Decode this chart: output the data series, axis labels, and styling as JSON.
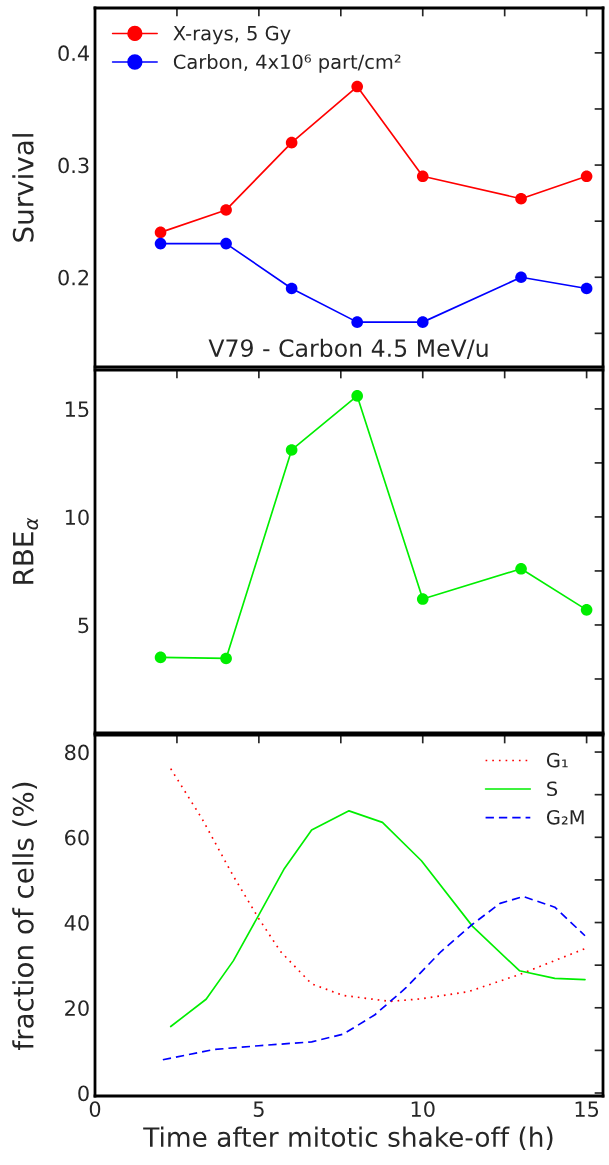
{
  "chart_data": [
    {
      "type": "line",
      "title": "V79 - Carbon 4.5 MeV/u",
      "ylabel": "Survival",
      "x": [
        2,
        4,
        6,
        8,
        10,
        13,
        15
      ],
      "series": [
        {
          "name": "X-rays, 5 Gy",
          "color": "#ff0000",
          "values": [
            0.24,
            0.26,
            0.32,
            0.37,
            0.29,
            0.27,
            0.29
          ]
        },
        {
          "name": "Carbon, 4x10⁶ part/cm²",
          "color": "#0000ff",
          "values": [
            0.23,
            0.23,
            0.19,
            0.16,
            0.16,
            0.2,
            0.19
          ]
        }
      ],
      "xlim": [
        0,
        15.5
      ],
      "xticks": [
        0,
        {
          "value": 2.5,
          "label": null
        },
        5,
        {
          "value": 7.5,
          "label": null
        },
        10,
        {
          "value": 12.5,
          "label": null
        },
        15
      ],
      "ylim": [
        0.12,
        0.44
      ],
      "yticks": [
        {
          "value": 0.15,
          "label": null
        },
        0.2,
        {
          "value": 0.25,
          "label": null
        },
        0.3,
        {
          "value": 0.35,
          "label": null
        },
        0.4
      ],
      "tick_labels": "y",
      "marker": "circle",
      "line_style": "solid",
      "legend": "top left",
      "grid": false
    },
    {
      "type": "line",
      "ylabel": "RBE$_{α}$",
      "x": [
        2,
        4,
        6,
        8,
        10,
        13,
        15
      ],
      "series": [
        {
          "color": "#00ee00",
          "values": [
            3.5,
            3.45,
            13.1,
            15.6,
            6.2,
            7.6,
            5.7
          ]
        }
      ],
      "xlim": [
        0,
        15.5
      ],
      "xticks": [
        0,
        {
          "value": 2.5,
          "label": null
        },
        5,
        {
          "value": 7.5,
          "label": null
        },
        10,
        {
          "value": 12.5,
          "label": null
        },
        15
      ],
      "ylim": [
        0,
        16.8
      ],
      "yticks": [
        {
          "value": 2.5,
          "label": null
        },
        5,
        {
          "value": 7.5,
          "label": null
        },
        10,
        {
          "value": 12.5,
          "label": null
        },
        15
      ],
      "tick_labels": "y",
      "marker": "circle",
      "line_style": "solid",
      "legend": false,
      "grid": false
    },
    {
      "type": "line",
      "xlabel": "Time after mitotic shake-off (h)",
      "ylabel": "fraction of cells (%)",
      "series": [
        {
          "name": "G₁",
          "color": "#ff0000",
          "line_style": "dotted",
          "x": [
            2.31,
            3.27,
            4.22,
            5.0,
            5.66,
            6.61,
            7.57,
            9.0,
            9.96,
            11.4,
            12.95,
            14.99
          ],
          "values": [
            76.1,
            64.3,
            50.9,
            40.9,
            33.2,
            25.6,
            22.9,
            21.5,
            22.1,
            23.8,
            27.8,
            34.0
          ]
        },
        {
          "name": "S",
          "color": "#00ee00",
          "line_style": "solid",
          "x": [
            2.31,
            3.39,
            4.22,
            5.0,
            5.78,
            6.61,
            7.75,
            8.77,
            9.96,
            11.52,
            12.95,
            14.03,
            14.95
          ],
          "values": [
            15.6,
            22.0,
            31.0,
            41.8,
            52.7,
            61.7,
            66.2,
            63.5,
            54.5,
            39.1,
            28.7,
            26.9,
            26.6
          ]
        },
        {
          "name": "G₂M",
          "color": "#0000ff",
          "line_style": "dashed",
          "x": [
            2.07,
            3.62,
            5.0,
            6.61,
            7.57,
            8.53,
            9.49,
            10.56,
            11.52,
            12.36,
            13.07,
            14.03,
            14.95
          ],
          "values": [
            7.8,
            10.2,
            11.1,
            12.0,
            13.8,
            18.3,
            24.7,
            33.2,
            39.6,
            44.5,
            46.1,
            43.6,
            36.9
          ]
        }
      ],
      "xlim": [
        0,
        15.5
      ],
      "xticks": [
        0,
        {
          "value": 2.5,
          "label": null
        },
        5,
        {
          "value": 7.5,
          "label": null
        },
        10,
        {
          "value": 12.5,
          "label": null
        },
        15
      ],
      "ylim": [
        -0.7,
        84
      ],
      "yticks": [
        0,
        {
          "value": 10,
          "label": null
        },
        20,
        {
          "value": 30,
          "label": null
        },
        40,
        {
          "value": 50,
          "label": null
        },
        60,
        {
          "value": 70,
          "label": null
        },
        80
      ],
      "marker": "none",
      "legend": "top right",
      "grid": false
    }
  ]
}
